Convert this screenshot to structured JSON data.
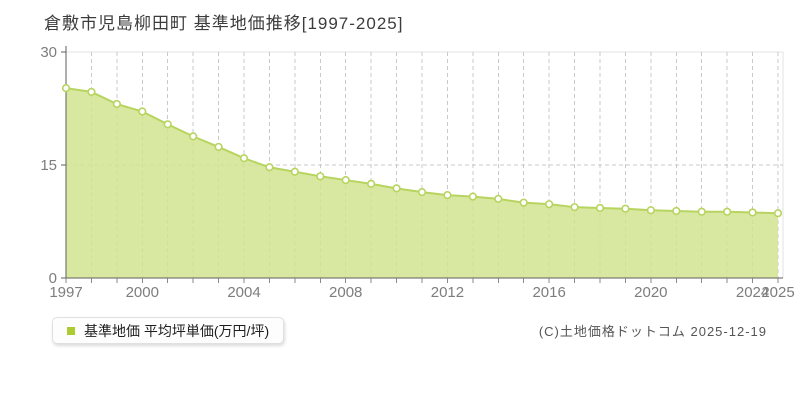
{
  "title": "倉敷市児島柳田町 基準地価推移[1997-2025]",
  "legend": {
    "label": "基準地価 平均坪単価(万円/坪)"
  },
  "copyright": "(C)土地価格ドットコム 2025-12-19",
  "colors": {
    "area_fill": "#d2e48f",
    "line": "#b7d45f",
    "marker_fill": "#ffffff",
    "marker_stroke": "#b7d45f",
    "grid": "#c9c9c9",
    "plot_border": "#e3e3e3",
    "axis": "#5f5f5f",
    "tick": "#8a8a8a",
    "tick_label": "#7d7d7d",
    "legend_swatch": "#accb33",
    "title_color": "#3c3c3c"
  },
  "chart_data": {
    "type": "area",
    "title": "倉敷市児島柳田町 基準地価推移[1997-2025]",
    "x": [
      1997,
      1998,
      1999,
      2000,
      2001,
      2002,
      2003,
      2004,
      2005,
      2006,
      2007,
      2008,
      2009,
      2010,
      2011,
      2012,
      2013,
      2014,
      2015,
      2016,
      2017,
      2018,
      2019,
      2020,
      2021,
      2022,
      2023,
      2024,
      2025
    ],
    "series": [
      {
        "name": "基準地価 平均坪単価",
        "values": [
          25.2,
          24.7,
          23.1,
          22.1,
          20.4,
          18.8,
          17.4,
          15.9,
          14.7,
          14.1,
          13.5,
          13.0,
          12.5,
          11.9,
          11.4,
          11.0,
          10.8,
          10.5,
          10.0,
          9.8,
          9.4,
          9.3,
          9.2,
          9.0,
          8.9,
          8.8,
          8.8,
          8.7,
          8.6
        ]
      }
    ],
    "unit": "万円/坪",
    "xlabel": "",
    "ylabel": "",
    "ylim": [
      0,
      30
    ],
    "yticks": [
      0,
      15,
      30
    ],
    "xticks_labeled": [
      1997,
      2000,
      2004,
      2008,
      2012,
      2016,
      2020,
      2024,
      2025
    ],
    "grid": {
      "vertical": "dashed-every-year",
      "horizontal": "dashed-at-15"
    },
    "legend_position": "bottom-left"
  }
}
